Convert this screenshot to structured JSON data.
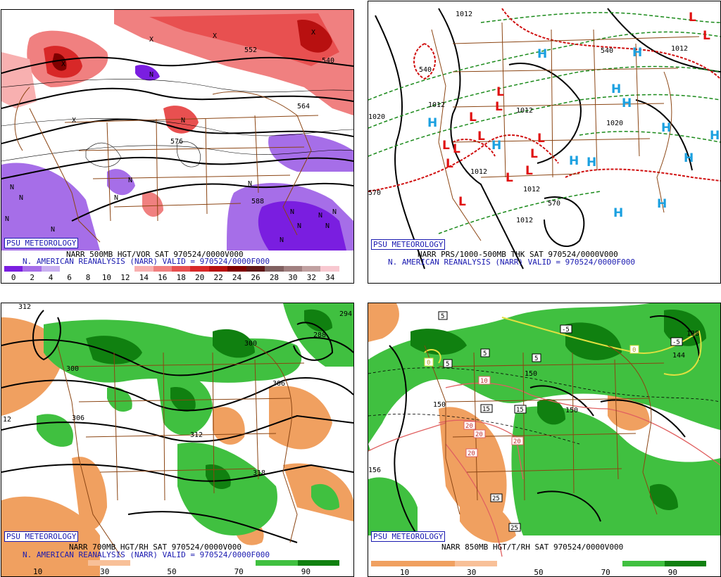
{
  "panels": [
    {
      "badge": "PSU METEOROLOGY",
      "line1": "NARR 500MB HGT/VOR SAT 970524/0000V000",
      "line2": "N. AMERICAN REANALYSIS (NARR) VALID = 970524/0000F000",
      "colorbar": [
        "#7a1ee0",
        "#a66ee8",
        "#c9b0f0",
        "#ffffff",
        "#ffffff",
        "#ffffff",
        "#ffffff",
        "#f8b0b0",
        "#f08080",
        "#e85050",
        "#d82828",
        "#b81010",
        "#800000",
        "#601818",
        "#806060",
        "#a08080",
        "#c0a0a0",
        "#f8c8d0"
      ],
      "colorbar_labels": [
        "0",
        "2",
        "4",
        "6",
        "8",
        "10",
        "12",
        "14",
        "16",
        "18",
        "20",
        "22",
        "24",
        "26",
        "28",
        "30",
        "32",
        "34"
      ],
      "contour_labels": [
        "552",
        "564",
        "576",
        "588",
        "540"
      ],
      "map_marks": [
        "N",
        "N",
        "N",
        "N",
        "N",
        "N",
        "N",
        "N",
        "X",
        "X",
        "N",
        "N",
        "N",
        "X",
        "X",
        "X",
        "N",
        "N",
        "N",
        "N"
      ]
    },
    {
      "badge": "PSU METEOROLOGY",
      "line1": "NARR PRS/1000-500MB THK SAT 970524/0000V000",
      "line2": "N. AMERICAN REANALYSIS (NARR) VALID = 970524/0000F000",
      "contour_labels": [
        "1012",
        "1020",
        "1012",
        "1012",
        "1012",
        "1020",
        "1012",
        "1012",
        "540",
        "570",
        "570",
        "540",
        "1012"
      ],
      "highs": [
        "H",
        "H",
        "H",
        "H",
        "H",
        "H",
        "H",
        "H",
        "H",
        "H",
        "H",
        "H",
        "H"
      ],
      "lows": [
        "L",
        "L",
        "L",
        "L",
        "L",
        "L",
        "L",
        "L",
        "L",
        "L",
        "L",
        "L",
        "L",
        "L"
      ]
    },
    {
      "badge": "PSU METEOROLOGY",
      "line1": "NARR 700MB HGT/RH SAT 970524/0000V000",
      "line2": "N. AMERICAN REANALYSIS (NARR) VALID = 970524/0000F000",
      "colorbar": [
        "#f0a060",
        "#f0a060",
        "#f8c098",
        "#ffffff",
        "#ffffff",
        "#ffffff",
        "#40c040",
        "#108010"
      ],
      "colorbar_labels": [
        "10",
        "30",
        "50",
        "70",
        "90"
      ],
      "contour_labels": [
        "312",
        "300",
        "300",
        "294",
        "288",
        "306",
        "306",
        "312",
        "318",
        "12"
      ]
    },
    {
      "badge": "PSU METEOROLOGY",
      "line1": "NARR 850MB HGT/T/RH SAT 970524/0000V000",
      "line2": "",
      "colorbar": [
        "#f0a060",
        "#f0a060",
        "#f8c098",
        "#ffffff",
        "#ffffff",
        "#ffffff",
        "#40c040",
        "#108010"
      ],
      "colorbar_labels": [
        "10",
        "30",
        "50",
        "70",
        "90"
      ],
      "contour_labels": [
        "150",
        "150",
        "150",
        "138",
        "144",
        "156"
      ],
      "temp_boxes": [
        "5",
        "5",
        "5",
        "5",
        "-5",
        "-5",
        "0",
        "0",
        "10",
        "15",
        "15",
        "20",
        "20",
        "20",
        "20",
        "25",
        "25"
      ]
    }
  ]
}
